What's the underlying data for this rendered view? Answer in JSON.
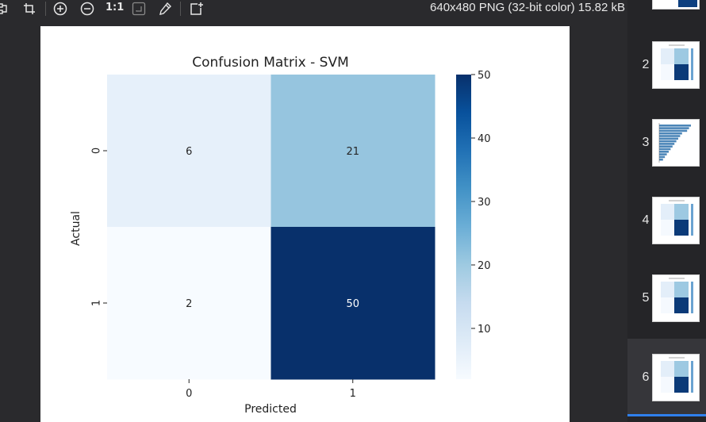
{
  "toolbar": {
    "zoom_actual_label": "1:1",
    "file_info": "640x480 PNG (32-bit color) 15.82 kB"
  },
  "icons": {
    "tools": [
      "selection-icon",
      "crop-icon",
      "zoom-in-icon",
      "zoom-out-icon",
      "actual-size-icon",
      "fit-window-icon",
      "color-picker-icon",
      "new-window-icon"
    ]
  },
  "colors": {
    "background": "#2a2a2d",
    "accent": "#2f80ed",
    "cmap_low": "#f7fbff",
    "cmap_high": "#08306b"
  },
  "chart_data": {
    "type": "heatmap",
    "title": "Confusion Matrix - SVM",
    "xlabel": "Predicted",
    "ylabel": "Actual",
    "x_categories": [
      "0",
      "1"
    ],
    "y_categories": [
      "0",
      "1"
    ],
    "values": [
      [
        6,
        21
      ],
      [
        2,
        50
      ]
    ],
    "annotations": [
      "6",
      "21",
      "2",
      "50"
    ],
    "colorbar": {
      "min": 2,
      "max": 50,
      "ticks": [
        "10",
        "20",
        "30",
        "40",
        "50"
      ],
      "tick_values": [
        10,
        20,
        30,
        40,
        50
      ]
    },
    "colormap": "Blues"
  },
  "thumbnails": [
    {
      "number": "2",
      "kind": "confusion matrix"
    },
    {
      "number": "3",
      "kind": "horizontal bar chart"
    },
    {
      "number": "4",
      "kind": "confusion matrix"
    },
    {
      "number": "5",
      "kind": "confusion matrix"
    },
    {
      "number": "6",
      "kind": "confusion matrix"
    }
  ]
}
